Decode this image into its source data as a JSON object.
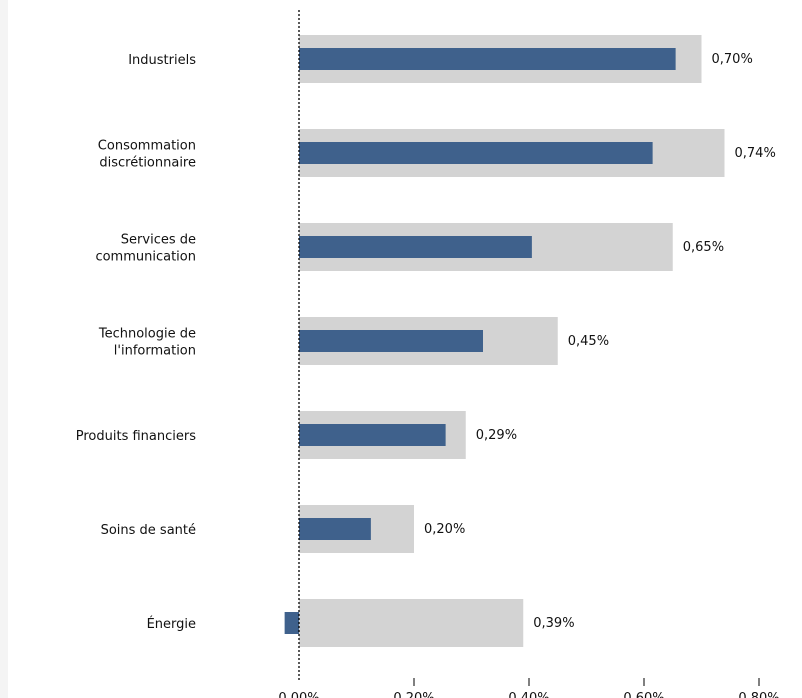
{
  "chart_data": {
    "type": "bar",
    "categories": [
      [
        "Industriels"
      ],
      [
        "Consommation",
        "discrétionnaire"
      ],
      [
        "Services de",
        "communication"
      ],
      [
        "Technologie de",
        "l'information"
      ],
      [
        "Produits financiers"
      ],
      [
        "Soins de santé"
      ],
      [
        "Énergie"
      ]
    ],
    "series": [
      {
        "values": [
          0.7,
          0.74,
          0.65,
          0.45,
          0.29,
          0.2,
          0.39
        ]
      },
      {
        "values": [
          0.655,
          0.615,
          0.405,
          0.32,
          0.255,
          0.125,
          -0.025
        ]
      }
    ],
    "data_labels": [
      "0,70%",
      "0,74%",
      "0,65%",
      "0,45%",
      "0,29%",
      "0,20%",
      "0,39%"
    ],
    "x_ticks": [
      {
        "value": 0.0,
        "label": "0,00%"
      },
      {
        "value": 0.2,
        "label": "0,20%"
      },
      {
        "value": 0.4,
        "label": "0,40%"
      },
      {
        "value": 0.6,
        "label": "0,60%"
      },
      {
        "value": 0.8,
        "label": "0,80%"
      }
    ],
    "xlim": [
      0,
      0.8
    ],
    "grid": false,
    "colors": {
      "background_bar": "#d3d3d3",
      "foreground_bar": "#3f618c",
      "zero_line": "#000000"
    }
  }
}
